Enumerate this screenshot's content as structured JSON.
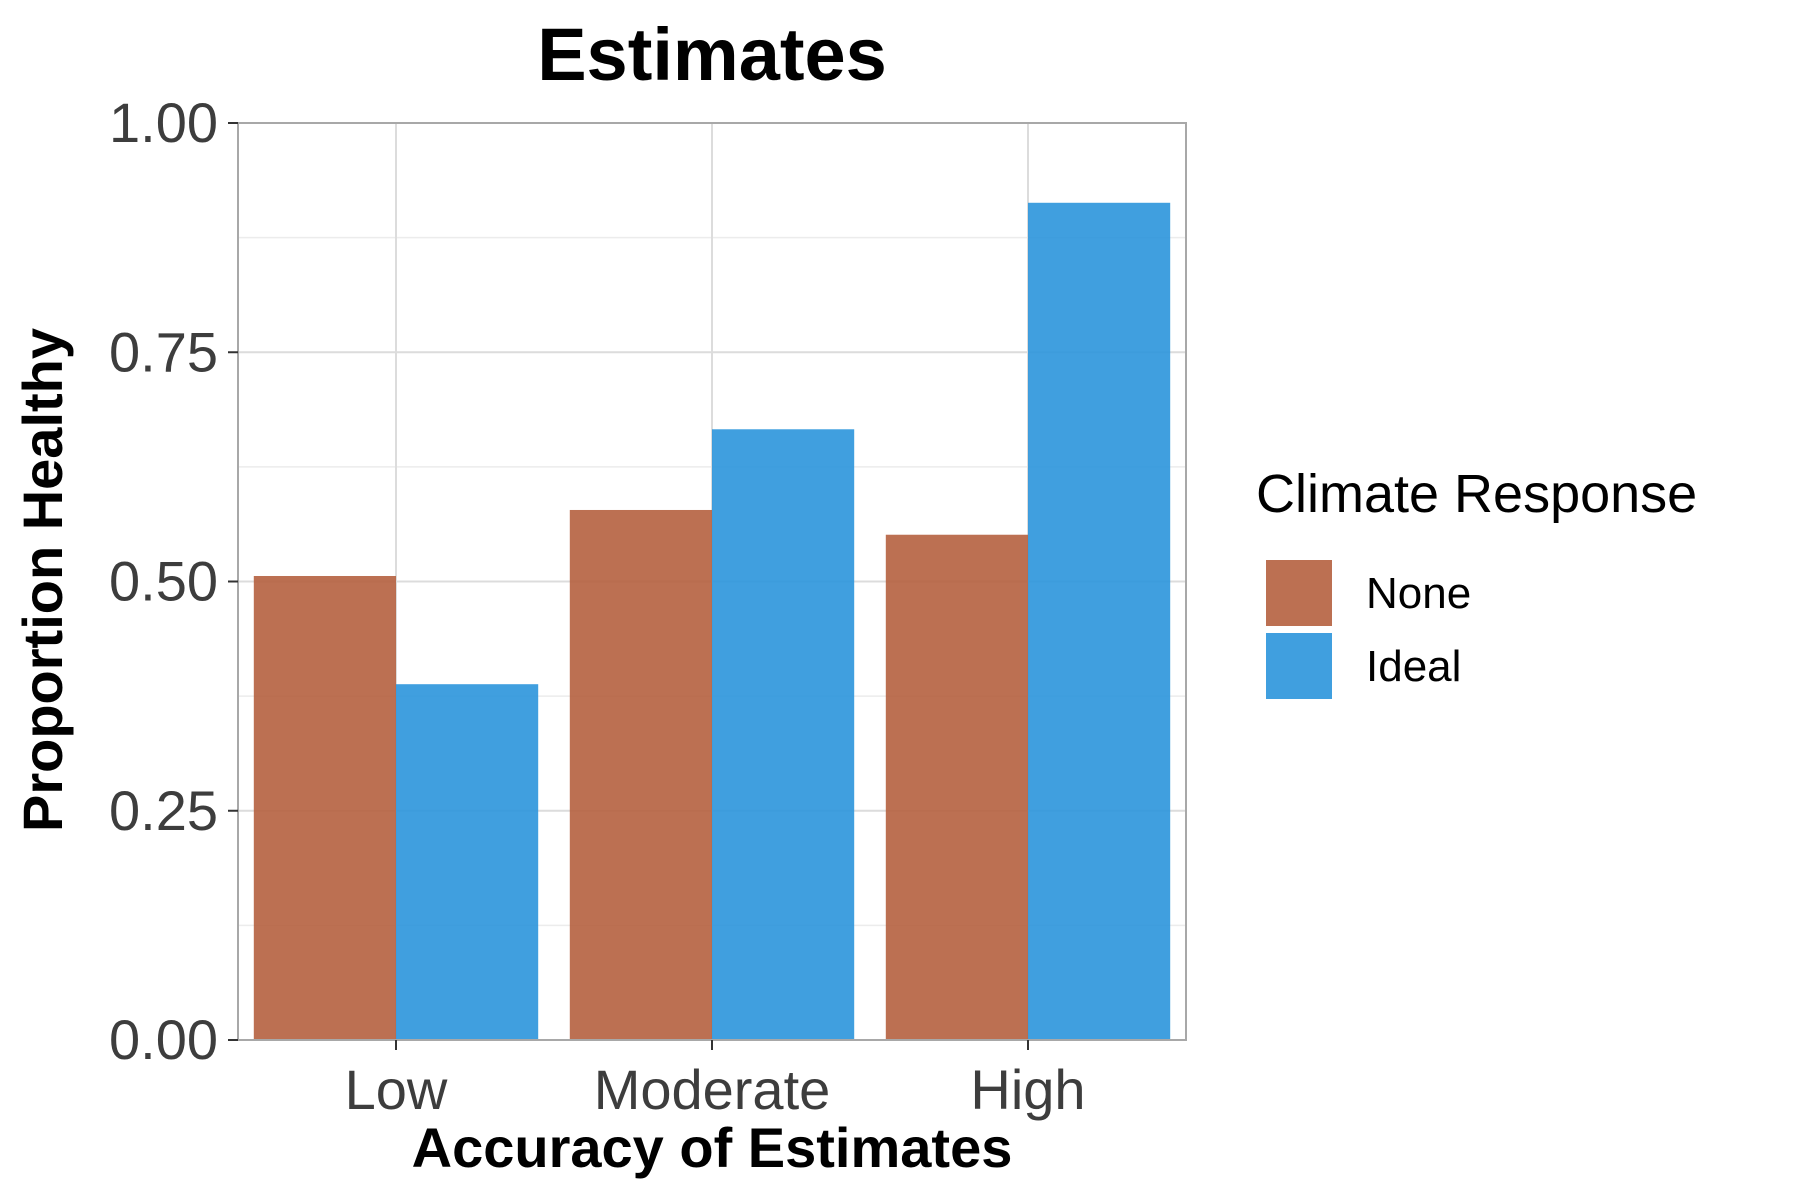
{
  "chart_data": {
    "type": "bar",
    "title": "Estimates",
    "xlabel": "Accuracy of Estimates",
    "ylabel": "Proportion Healthy",
    "categories": [
      "Low",
      "Moderate",
      "High"
    ],
    "ylim": [
      0,
      1
    ],
    "yticks": [
      "0.00",
      "0.25",
      "0.50",
      "0.75",
      "1.00"
    ],
    "grid": true,
    "legend": {
      "title": "Climate Response",
      "position": "right"
    },
    "series": [
      {
        "name": "None",
        "color": "#b5603f",
        "values": [
          0.506,
          0.578,
          0.551
        ]
      },
      {
        "name": "Ideal",
        "color": "#2b95db",
        "values": [
          0.388,
          0.666,
          0.913
        ]
      }
    ]
  }
}
